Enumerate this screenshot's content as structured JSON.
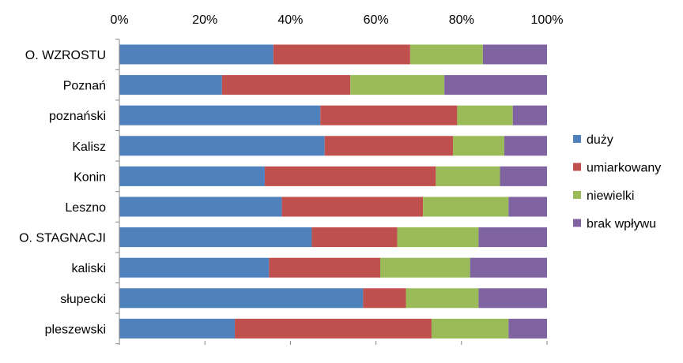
{
  "chart_data": {
    "type": "bar",
    "orientation": "horizontal",
    "stacked": "percent",
    "title": "",
    "xlabel": "",
    "ylabel": "",
    "xlim": [
      0,
      100
    ],
    "x_ticks": [
      "0%",
      "20%",
      "40%",
      "60%",
      "80%",
      "100%"
    ],
    "grid": false,
    "legend_position": "right",
    "categories": [
      "O. WZROSTU",
      "Poznań",
      "poznański",
      "Kalisz",
      "Konin",
      "Leszno",
      "O. STAGNACJI",
      "kaliski",
      "słupecki",
      "pleszewski"
    ],
    "series": [
      {
        "name": "duży",
        "color": "#4F81BD",
        "values": [
          36,
          24,
          47,
          48,
          34,
          38,
          45,
          35,
          57,
          27
        ]
      },
      {
        "name": "umiarkowany",
        "color": "#C0504D",
        "values": [
          32,
          30,
          32,
          30,
          40,
          33,
          20,
          26,
          10,
          46
        ]
      },
      {
        "name": "niewielki",
        "color": "#9BBB59",
        "values": [
          17,
          22,
          13,
          12,
          15,
          20,
          19,
          21,
          17,
          18
        ]
      },
      {
        "name": "brak wpływu",
        "color": "#8064A2",
        "values": [
          15,
          24,
          8,
          10,
          11,
          9,
          16,
          18,
          16,
          9
        ]
      }
    ]
  }
}
